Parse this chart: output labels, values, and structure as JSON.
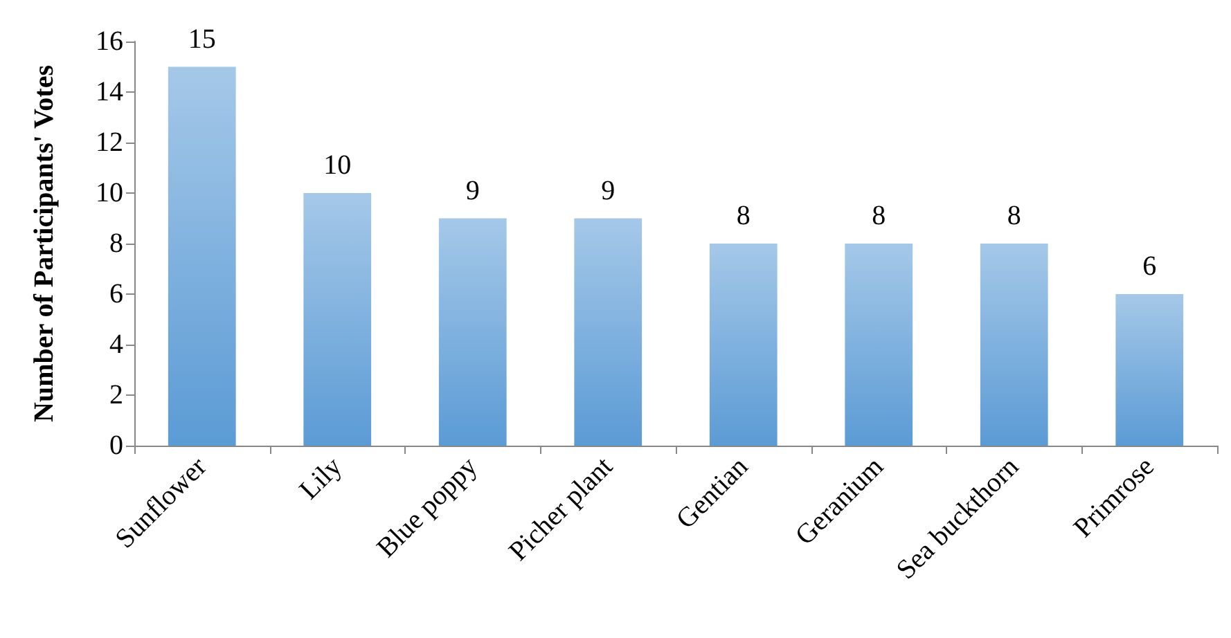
{
  "chart_data": {
    "type": "bar",
    "ylabel": "Number of Participants' Votes",
    "categories": [
      "Sunflower",
      "Lily",
      "Blue poppy",
      "Picher plant",
      "Gentian",
      "Geranium",
      "Sea buckthorn",
      "Primrose"
    ],
    "values": [
      15,
      10,
      9,
      9,
      8,
      8,
      8,
      6
    ],
    "color": "#5b9bd5",
    "ylim": [
      0,
      16
    ],
    "yticks": [
      0,
      2,
      4,
      6,
      8,
      10,
      12,
      14,
      16
    ],
    "grid": false,
    "data_labels": true
  }
}
